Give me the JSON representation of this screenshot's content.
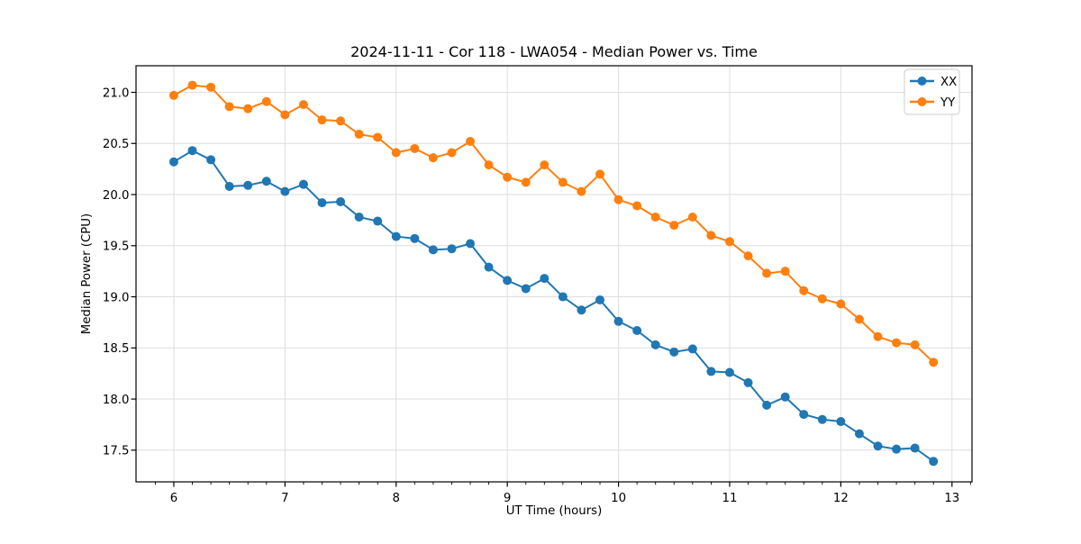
{
  "chart_data": {
    "type": "line",
    "title": "2024-11-11 - Cor 118 - LWA054 - Median Power vs. Time",
    "xlabel": "UT Time (hours)",
    "ylabel": "Median Power (CPU)",
    "xlim": [
      5.66,
      13.18
    ],
    "ylim": [
      17.19,
      21.26
    ],
    "grid": true,
    "legend_position": "upper right",
    "x_major_ticks": [
      6,
      7,
      8,
      9,
      10,
      11,
      12,
      13
    ],
    "x_tick_labels": [
      "6",
      "7",
      "8",
      "9",
      "10",
      "11",
      "12",
      "13"
    ],
    "x_minor_tick_step": 0.166667,
    "y_major_ticks": [
      17.5,
      18.0,
      18.5,
      19.0,
      19.5,
      20.0,
      20.5,
      21.0
    ],
    "y_tick_labels": [
      "17.5",
      "18.0",
      "18.5",
      "19.0",
      "19.5",
      "20.0",
      "20.5",
      "21.0"
    ],
    "x": [
      6.0,
      6.1667,
      6.3333,
      6.5,
      6.6667,
      6.8333,
      7.0,
      7.1667,
      7.3333,
      7.5,
      7.6667,
      7.8333,
      8.0,
      8.1667,
      8.3333,
      8.5,
      8.6667,
      8.8333,
      9.0,
      9.1667,
      9.3333,
      9.5,
      9.6667,
      9.8333,
      10.0,
      10.1667,
      10.3333,
      10.5,
      10.6667,
      10.8333,
      11.0,
      11.1667,
      11.3333,
      11.5,
      11.6667,
      11.8333,
      12.0,
      12.1667,
      12.3333,
      12.5,
      12.6667,
      12.8333
    ],
    "series": [
      {
        "name": "XX",
        "color": "#1f77b4",
        "values": [
          20.32,
          20.43,
          20.34,
          20.08,
          20.09,
          20.13,
          20.03,
          20.1,
          19.92,
          19.93,
          19.78,
          19.74,
          19.59,
          19.57,
          19.46,
          19.47,
          19.52,
          19.29,
          19.16,
          19.08,
          19.18,
          19.0,
          18.87,
          18.97,
          18.76,
          18.67,
          18.53,
          18.46,
          18.49,
          18.27,
          18.26,
          18.16,
          17.94,
          18.02,
          17.85,
          17.8,
          17.78,
          17.66,
          17.54,
          17.51,
          17.52,
          17.39
        ]
      },
      {
        "name": "YY",
        "color": "#ff7f0e",
        "values": [
          20.97,
          21.07,
          21.05,
          20.86,
          20.84,
          20.91,
          20.78,
          20.88,
          20.73,
          20.72,
          20.59,
          20.56,
          20.41,
          20.45,
          20.36,
          20.41,
          20.52,
          20.29,
          20.17,
          20.12,
          20.29,
          20.12,
          20.03,
          20.2,
          19.95,
          19.89,
          19.78,
          19.7,
          19.78,
          19.6,
          19.54,
          19.4,
          19.23,
          19.25,
          19.06,
          18.98,
          18.93,
          18.78,
          18.61,
          18.55,
          18.53,
          18.36
        ]
      }
    ],
    "style": {
      "grid_color": "#dedede",
      "spine_color": "#000000",
      "background": "#ffffff",
      "line_width": 2,
      "marker_radius": 5
    }
  }
}
